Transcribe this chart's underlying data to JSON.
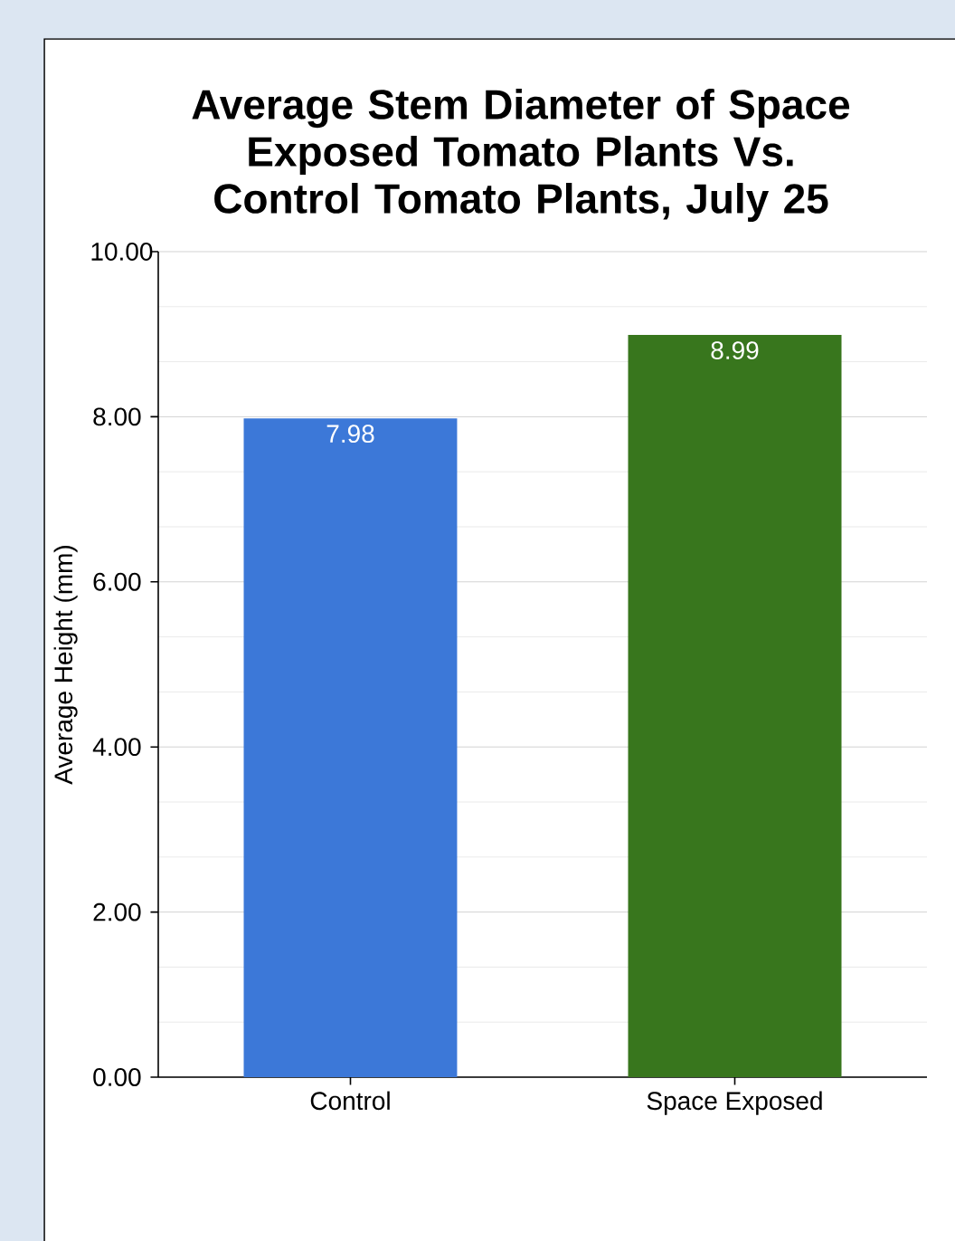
{
  "chart_data": {
    "type": "bar",
    "title": "Average Stem Diameter of Space Exposed Tomato Plants Vs. Control Tomato Plants, July 25",
    "ylabel": "Average Height (mm)",
    "categories": [
      "Control",
      "Space Exposed"
    ],
    "values": [
      7.98,
      8.99
    ],
    "colors": [
      "#3c78d8",
      "#38761d"
    ],
    "ylim": [
      0,
      10
    ],
    "yticks": [
      {
        "value": 0,
        "label": "0.00"
      },
      {
        "value": 2,
        "label": "2.00"
      },
      {
        "value": 4,
        "label": "4.00"
      },
      {
        "value": 6,
        "label": "6.00"
      },
      {
        "value": 8,
        "label": "8.00"
      },
      {
        "value": 10,
        "label": "10.00"
      }
    ],
    "data_labels": true,
    "grid": "y"
  }
}
